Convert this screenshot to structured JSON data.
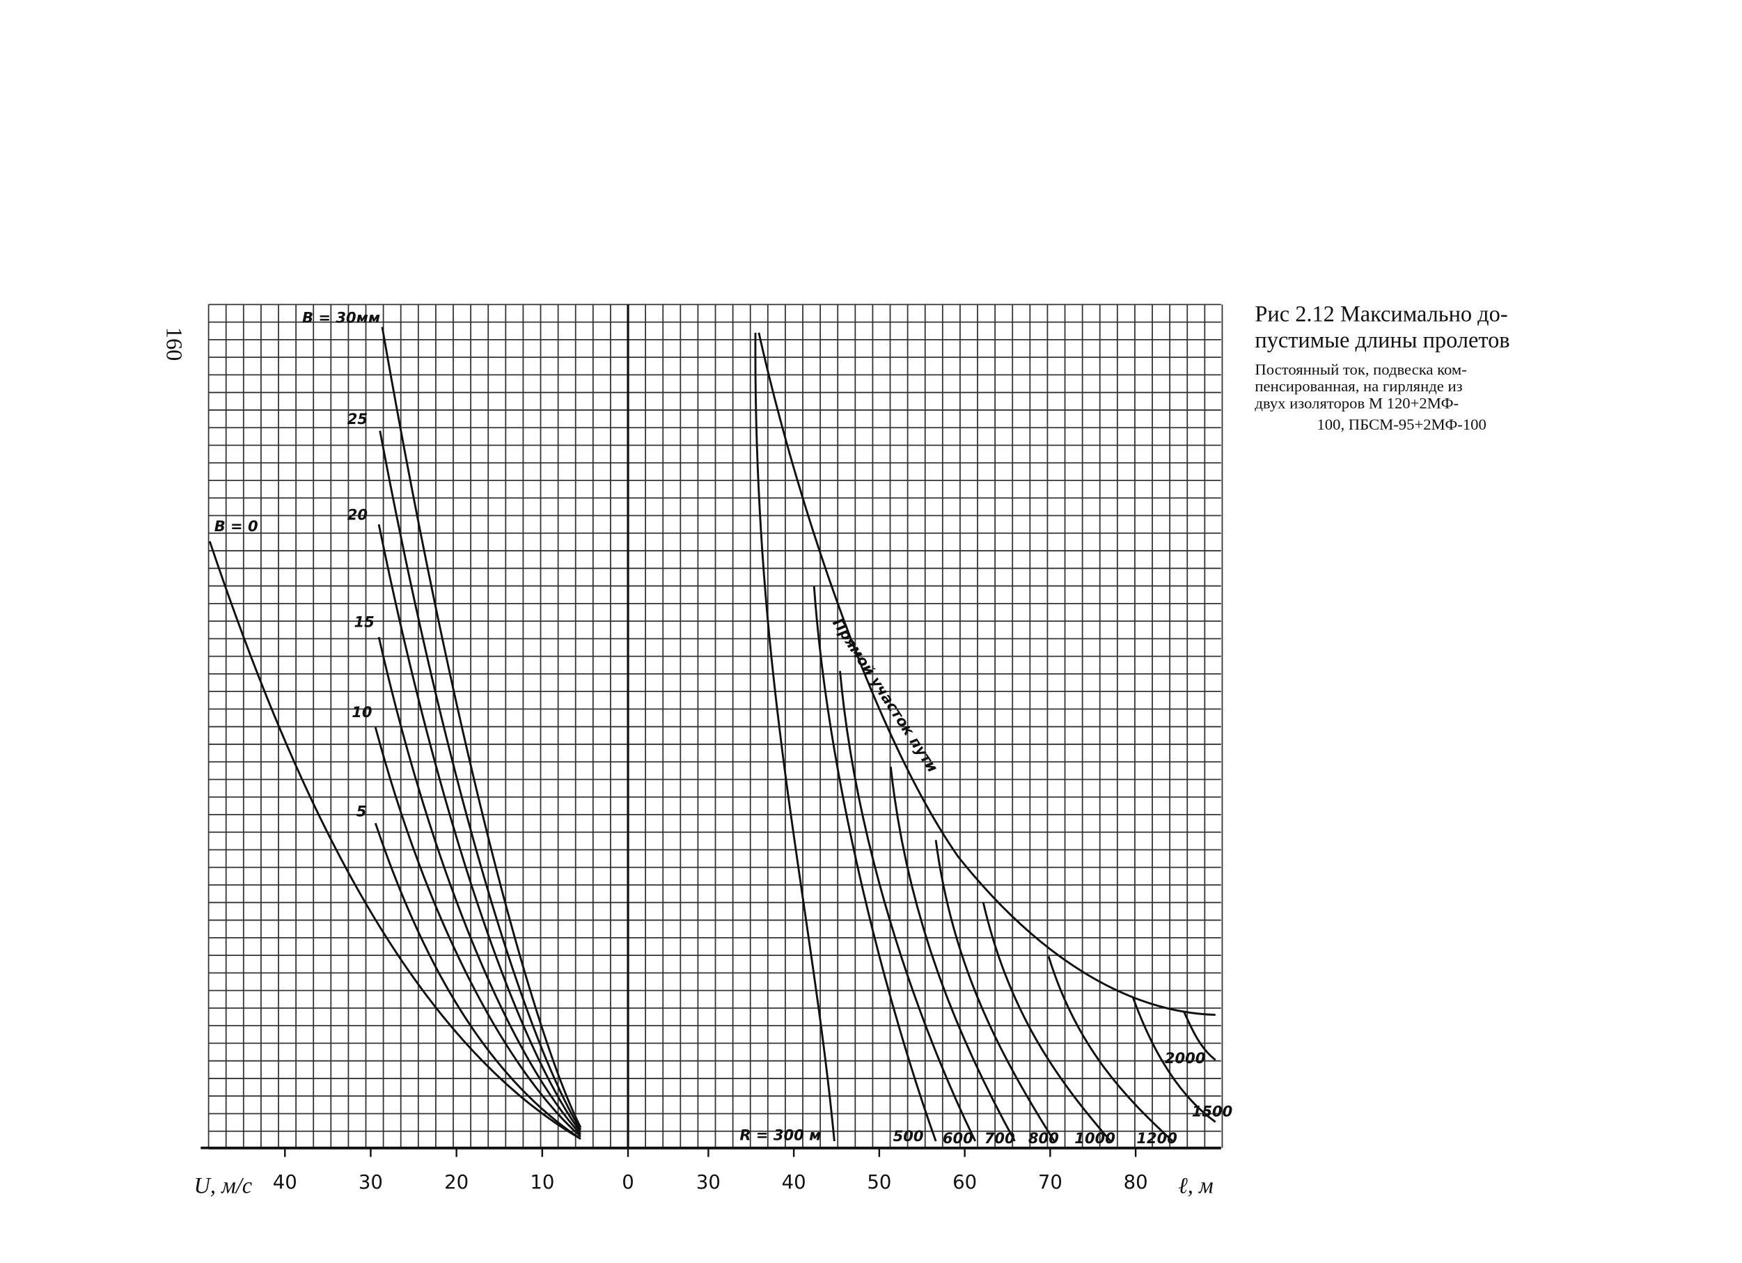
{
  "page_number": "160",
  "caption": {
    "title": [
      "Рис 2.12 Максимально до-",
      "пустимые длины пролетов"
    ],
    "text": [
      "Постоянный ток, подвеска ком-",
      "пенсированная, на гирлянде из",
      "двух изоляторов М 120+2МФ-",
      "100, ПБСМ-95+2МФ-100"
    ]
  },
  "chart_data": [
    {
      "type": "nomogram",
      "xlabel": "U, м/с",
      "xlim": [
        48.9,
        0
      ],
      "xticks": [
        40,
        30,
        20,
        10,
        0
      ],
      "curve_labels": [
        "B = 0",
        "B = 30мм",
        "25",
        "20",
        "15",
        "10",
        "5"
      ]
    },
    {
      "type": "nomogram",
      "xlabel": "ℓ, м",
      "xlim": [
        20.6,
        90
      ],
      "xticks": [
        30,
        40,
        50,
        60,
        70,
        80
      ],
      "curve_labels": [
        "R = 300 м",
        "500",
        "600",
        "700",
        "800",
        "1000",
        "1200",
        "1500",
        "2000"
      ],
      "envelope_label": "Прямой участок пути"
    }
  ]
}
